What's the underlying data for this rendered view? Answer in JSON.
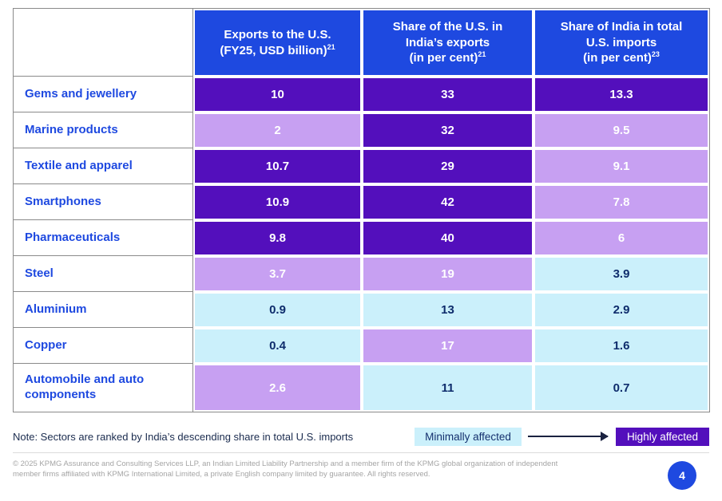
{
  "colors": {
    "header_blue": "#1E49E0",
    "highly_affected": "#530FBC",
    "moderately_affected": "#C7A0F2",
    "minimally_affected": "#CBF0FB",
    "sector_text_blue": "#1E49E0",
    "navy_value_text": "#0E2C6C",
    "grid_gray": "#8A8A8A"
  },
  "table": {
    "header": {
      "columns": [
        {
          "lines": [
            "Exports to the U.S.",
            "(FY25, USD billion)"
          ],
          "superscript": "21"
        },
        {
          "lines": [
            "Share of the U.S. in",
            "India’s exports",
            "(in per cent)"
          ],
          "superscript": "21"
        },
        {
          "lines": [
            "Share of India in total",
            "U.S. imports",
            "(in per cent)"
          ],
          "superscript": "23"
        }
      ]
    },
    "rows": [
      {
        "sector": "Gems and jewellery",
        "cells": [
          {
            "value": "10",
            "level": "high"
          },
          {
            "value": "33",
            "level": "high"
          },
          {
            "value": "13.3",
            "level": "high"
          }
        ]
      },
      {
        "sector": "Marine products",
        "cells": [
          {
            "value": "2",
            "level": "medium"
          },
          {
            "value": "32",
            "level": "high"
          },
          {
            "value": "9.5",
            "level": "medium"
          }
        ]
      },
      {
        "sector": "Textile and apparel",
        "cells": [
          {
            "value": "10.7",
            "level": "high"
          },
          {
            "value": "29",
            "level": "high"
          },
          {
            "value": "9.1",
            "level": "medium"
          }
        ]
      },
      {
        "sector": "Smartphones",
        "cells": [
          {
            "value": "10.9",
            "level": "high"
          },
          {
            "value": "42",
            "level": "high"
          },
          {
            "value": "7.8",
            "level": "medium"
          }
        ]
      },
      {
        "sector": "Pharmaceuticals",
        "cells": [
          {
            "value": "9.8",
            "level": "high"
          },
          {
            "value": "40",
            "level": "high"
          },
          {
            "value": "6",
            "level": "medium"
          }
        ]
      },
      {
        "sector": "Steel",
        "cells": [
          {
            "value": "3.7",
            "level": "medium"
          },
          {
            "value": "19",
            "level": "medium"
          },
          {
            "value": "3.9",
            "level": "low"
          }
        ]
      },
      {
        "sector": "Aluminium",
        "cells": [
          {
            "value": "0.9",
            "level": "low"
          },
          {
            "value": "13",
            "level": "low"
          },
          {
            "value": "2.9",
            "level": "low"
          }
        ]
      },
      {
        "sector": "Copper",
        "cells": [
          {
            "value": "0.4",
            "level": "low"
          },
          {
            "value": "17",
            "level": "medium"
          },
          {
            "value": "1.6",
            "level": "low"
          }
        ]
      },
      {
        "sector": "Automobile and auto components",
        "cells": [
          {
            "value": "2.6",
            "level": "medium"
          },
          {
            "value": "11",
            "level": "low"
          },
          {
            "value": "0.7",
            "level": "low"
          }
        ]
      }
    ]
  },
  "note": "Note: Sectors are ranked by India’s descending share in total U.S. imports",
  "legend": {
    "min_label": "Minimally affected",
    "max_label": "Highly affected"
  },
  "footer": {
    "copyright": "© 2025 KPMG Assurance and Consulting Services LLP, an Indian Limited Liability Partnership and a member firm of the KPMG global organization of independent member firms affiliated with KPMG International Limited, a private English company limited by guarantee. All rights reserved.",
    "page_number": "4"
  }
}
